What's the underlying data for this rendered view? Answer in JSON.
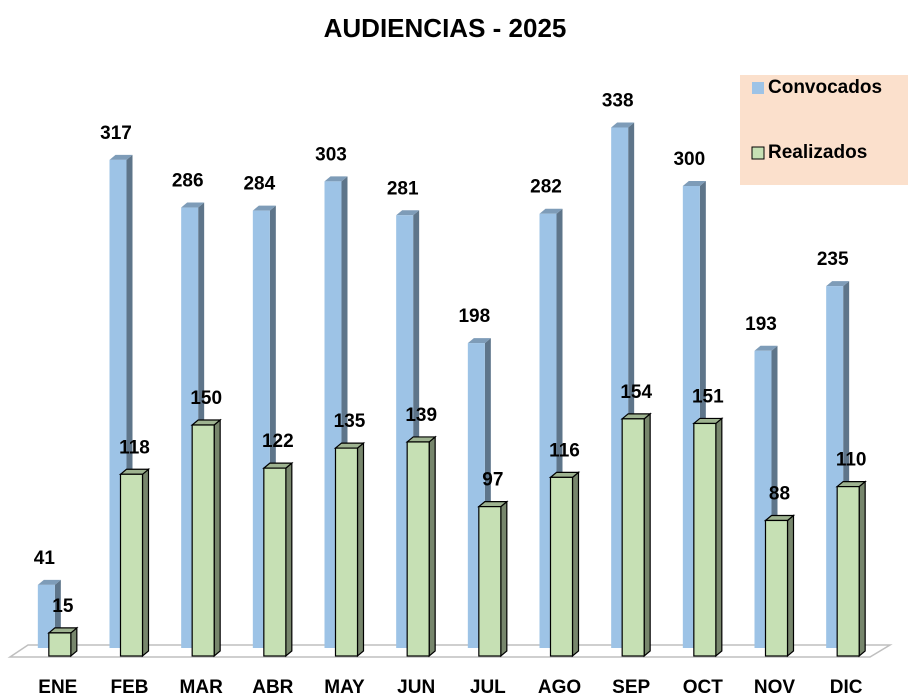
{
  "chart_data": {
    "type": "bar3d",
    "title": "AUDIENCIAS - 2025",
    "categories": [
      "ENE",
      "FEB",
      "MAR",
      "ABR",
      "MAY",
      "JUN",
      "JUL",
      "AGO",
      "SEP",
      "OCT",
      "NOV",
      "DIC"
    ],
    "series": [
      {
        "name": "Convocados",
        "color": "#9dc3e6",
        "values": [
          41,
          317,
          286,
          284,
          303,
          281,
          198,
          282,
          338,
          300,
          193,
          235
        ]
      },
      {
        "name": "Realizados",
        "color": "#c6e0b4",
        "values": [
          15,
          118,
          150,
          122,
          135,
          139,
          97,
          116,
          154,
          151,
          88,
          110
        ]
      }
    ],
    "ylim": [
      0,
      350
    ],
    "legend": "top-right",
    "grid": false
  }
}
